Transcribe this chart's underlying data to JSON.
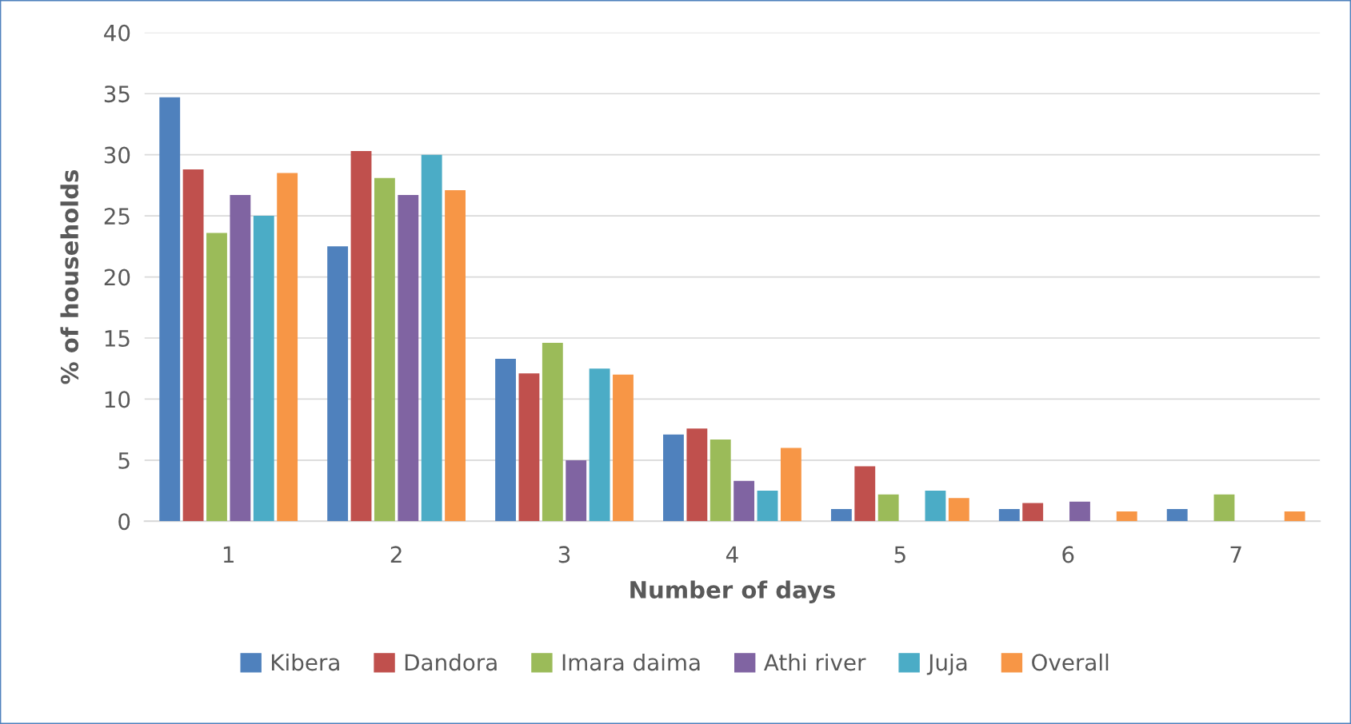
{
  "chart_data": {
    "type": "bar",
    "xlabel": "Number of days",
    "ylabel": "% of households",
    "categories": [
      "1",
      "2",
      "3",
      "4",
      "5",
      "6",
      "7"
    ],
    "series": [
      {
        "name": "Kibera",
        "color": "#4f81bd",
        "values": [
          34.7,
          22.5,
          13.3,
          7.1,
          1.0,
          1.0,
          1.0
        ]
      },
      {
        "name": "Dandora",
        "color": "#c0504d",
        "values": [
          28.8,
          30.3,
          12.1,
          7.6,
          4.5,
          1.5,
          0
        ]
      },
      {
        "name": "Imara daima",
        "color": "#9bbb59",
        "values": [
          23.6,
          28.1,
          14.6,
          6.7,
          2.2,
          0,
          2.2
        ]
      },
      {
        "name": "Athi river",
        "color": "#8064a2",
        "values": [
          26.7,
          26.7,
          5.0,
          3.3,
          0,
          1.6,
          0
        ]
      },
      {
        "name": "Juja",
        "color": "#4bacc6",
        "values": [
          25.0,
          30.0,
          12.5,
          2.5,
          2.5,
          0,
          0
        ]
      },
      {
        "name": "Overall",
        "color": "#f79646",
        "values": [
          28.5,
          27.1,
          12.0,
          6.0,
          1.9,
          0.8,
          0.8
        ]
      }
    ],
    "ylim": [
      0,
      40
    ],
    "yticks": [
      0,
      5,
      10,
      15,
      20,
      25,
      30,
      35,
      40
    ],
    "grid": "y",
    "legend": "bottom"
  }
}
